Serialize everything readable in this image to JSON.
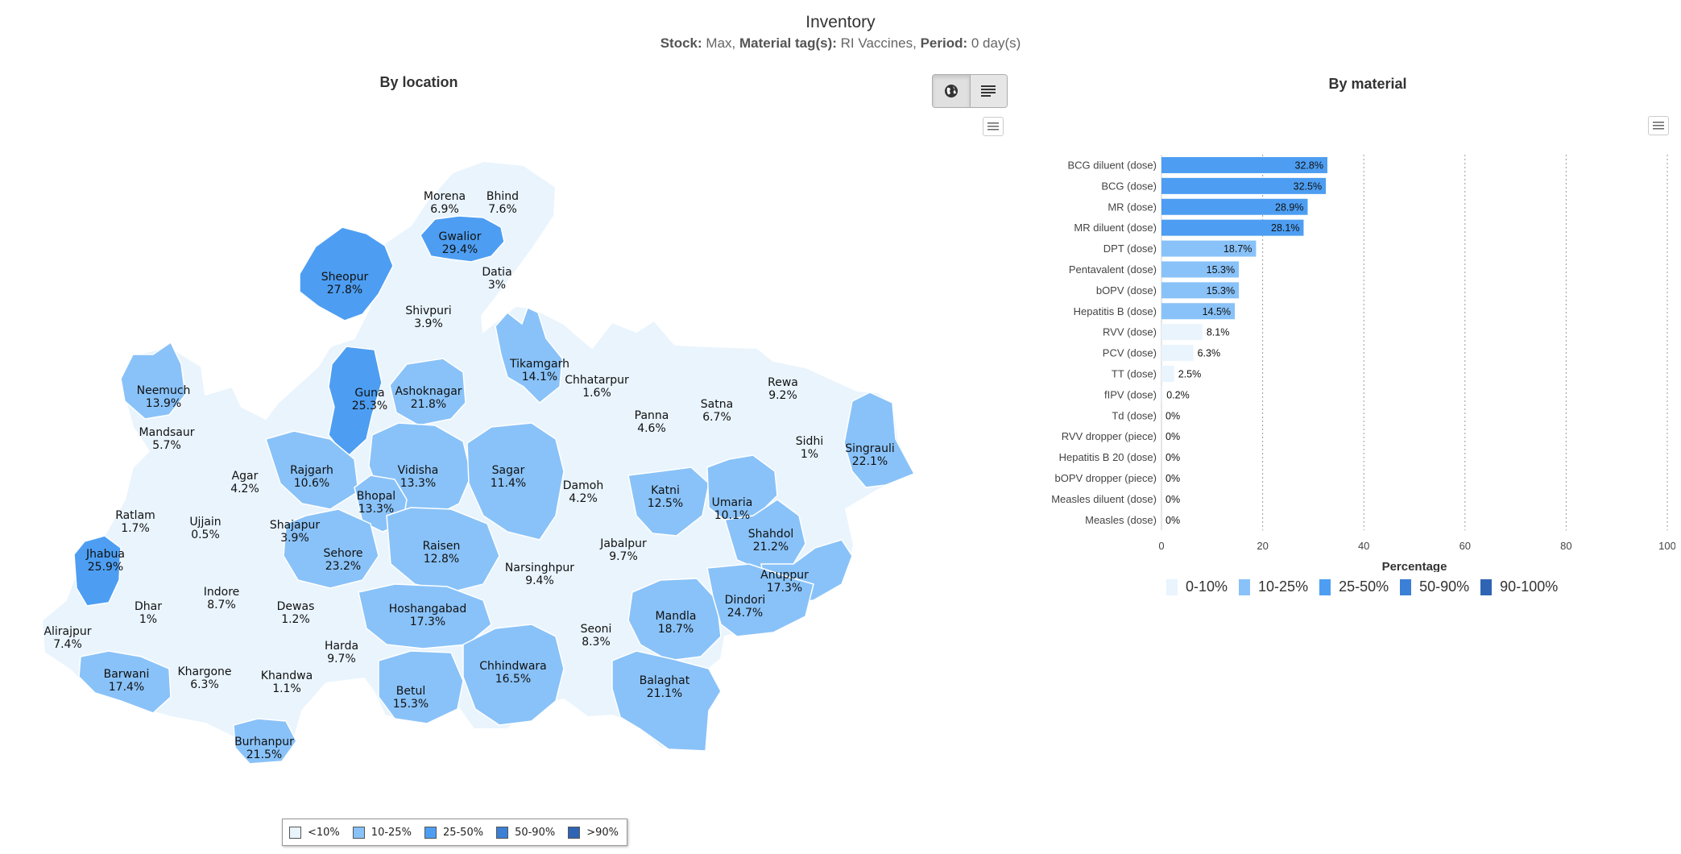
{
  "header": {
    "title": "Inventory",
    "stock_label": "Stock:",
    "stock_value": "Max,",
    "tags_label": "Material tag(s):",
    "tags_value": "RI Vaccines,",
    "period_label": "Period:",
    "period_value": "0 day(s)"
  },
  "map_panel": {
    "title": "By location",
    "toggle": [
      {
        "icon": "globe-icon",
        "active": true
      },
      {
        "icon": "list-icon",
        "active": false
      }
    ],
    "menu_icon": "hamburger-menu-icon",
    "districts": [
      {
        "name": "Morena",
        "value": "6.9%",
        "band": 0
      },
      {
        "name": "Bhind",
        "value": "7.6%",
        "band": 0
      },
      {
        "name": "Gwalior",
        "value": "29.4%",
        "band": 2
      },
      {
        "name": "Datia",
        "value": "3%",
        "band": 0
      },
      {
        "name": "Sheopur",
        "value": "27.8%",
        "band": 2
      },
      {
        "name": "Shivpuri",
        "value": "3.9%",
        "band": 0
      },
      {
        "name": "Tikamgarh",
        "value": "14.1%",
        "band": 1
      },
      {
        "name": "Chhatarpur",
        "value": "1.6%",
        "band": 0
      },
      {
        "name": "Panna",
        "value": "4.6%",
        "band": 0
      },
      {
        "name": "Satna",
        "value": "6.7%",
        "band": 0
      },
      {
        "name": "Rewa",
        "value": "9.2%",
        "band": 0
      },
      {
        "name": "Sidhi",
        "value": "1%",
        "band": 0
      },
      {
        "name": "Singrauli",
        "value": "22.1%",
        "band": 1
      },
      {
        "name": "Neemuch",
        "value": "13.9%",
        "band": 1
      },
      {
        "name": "Mandsaur",
        "value": "5.7%",
        "band": 0
      },
      {
        "name": "Guna",
        "value": "25.3%",
        "band": 2
      },
      {
        "name": "Ashoknagar",
        "value": "21.8%",
        "band": 1
      },
      {
        "name": "Rajgarh",
        "value": "10.6%",
        "band": 1
      },
      {
        "name": "Vidisha",
        "value": "13.3%",
        "band": 1
      },
      {
        "name": "Sagar",
        "value": "11.4%",
        "band": 1
      },
      {
        "name": "Damoh",
        "value": "4.2%",
        "band": 0
      },
      {
        "name": "Katni",
        "value": "12.5%",
        "band": 1
      },
      {
        "name": "Umaria",
        "value": "10.1%",
        "band": 1
      },
      {
        "name": "Shahdol",
        "value": "21.2%",
        "band": 1
      },
      {
        "name": "Anuppur",
        "value": "17.3%",
        "band": 1
      },
      {
        "name": "Agar",
        "value": "4.2%",
        "band": 0
      },
      {
        "name": "Ratlam",
        "value": "1.7%",
        "band": 0
      },
      {
        "name": "Ujjain",
        "value": "0.5%",
        "band": 0
      },
      {
        "name": "Shajapur",
        "value": "3.9%",
        "band": 0
      },
      {
        "name": "Bhopal",
        "value": "13.3%",
        "band": 1
      },
      {
        "name": "Sehore",
        "value": "23.2%",
        "band": 1
      },
      {
        "name": "Raisen",
        "value": "12.8%",
        "band": 1
      },
      {
        "name": "Jabalpur",
        "value": "9.7%",
        "band": 0
      },
      {
        "name": "Narsinghpur",
        "value": "9.4%",
        "band": 0
      },
      {
        "name": "Jhabua",
        "value": "25.9%",
        "band": 2
      },
      {
        "name": "Dhar",
        "value": "1%",
        "band": 0
      },
      {
        "name": "Indore",
        "value": "8.7%",
        "band": 0
      },
      {
        "name": "Dewas",
        "value": "1.2%",
        "band": 0
      },
      {
        "name": "Alirajpur",
        "value": "7.4%",
        "band": 0
      },
      {
        "name": "Hoshangabad",
        "value": "17.3%",
        "band": 1
      },
      {
        "name": "Harda",
        "value": "9.7%",
        "band": 0
      },
      {
        "name": "Seoni",
        "value": "8.3%",
        "band": 0
      },
      {
        "name": "Mandla",
        "value": "18.7%",
        "band": 1
      },
      {
        "name": "Dindori",
        "value": "24.7%",
        "band": 1
      },
      {
        "name": "Chhindwara",
        "value": "16.5%",
        "band": 1
      },
      {
        "name": "Barwani",
        "value": "17.4%",
        "band": 1
      },
      {
        "name": "Khargone",
        "value": "6.3%",
        "band": 0
      },
      {
        "name": "Khandwa",
        "value": "1.1%",
        "band": 0
      },
      {
        "name": "Betul",
        "value": "15.3%",
        "band": 1
      },
      {
        "name": "Balaghat",
        "value": "21.1%",
        "band": 1
      },
      {
        "name": "Burhanpur",
        "value": "21.5%",
        "band": 1
      }
    ],
    "legend": [
      "<10%",
      "10-25%",
      "25-50%",
      "50-90%",
      ">90%"
    ]
  },
  "material_panel": {
    "title": "By material",
    "menu_icon": "hamburger-menu-icon",
    "legend": [
      "0-10%",
      "10-25%",
      "25-50%",
      "50-90%",
      "90-100%"
    ]
  },
  "colors": {
    "band_0": "#e9f4fd",
    "band_1": "#89c2f8",
    "band_2": "#4d9ef2",
    "band_3": "#3b7fd6",
    "band_4": "#2f64b4",
    "map_band_3": "#3b7fd6",
    "map_band_4": "#2f64b4"
  },
  "chart_data": {
    "type": "bar",
    "orientation": "horizontal",
    "categories": [
      "BCG diluent (dose)",
      "BCG (dose)",
      "MR (dose)",
      "MR diluent (dose)",
      "DPT (dose)",
      "Pentavalent (dose)",
      "bOPV (dose)",
      "Hepatitis B (dose)",
      "RVV (dose)",
      "PCV (dose)",
      "TT (dose)",
      "fIPV (dose)",
      "Td (dose)",
      "RVV dropper (piece)",
      "Hepatitis B 20 (dose)",
      "bOPV dropper (piece)",
      "Measles diluent (dose)",
      "Measles (dose)"
    ],
    "values": [
      32.8,
      32.5,
      28.9,
      28.1,
      18.7,
      15.3,
      15.3,
      14.5,
      8.1,
      6.3,
      2.5,
      0.2,
      0,
      0,
      0,
      0,
      0,
      0
    ],
    "labels": [
      "32.8%",
      "32.5%",
      "28.9%",
      "28.1%",
      "18.7%",
      "15.3%",
      "15.3%",
      "14.5%",
      "8.1%",
      "6.3%",
      "2.5%",
      "0.2%",
      "0%",
      "0%",
      "0%",
      "0%",
      "0%",
      "0%"
    ],
    "xlabel": "Percentage",
    "xlim": [
      0,
      100
    ],
    "xticks": [
      "0",
      "20",
      "40",
      "60",
      "80",
      "100"
    ],
    "grid": true
  }
}
